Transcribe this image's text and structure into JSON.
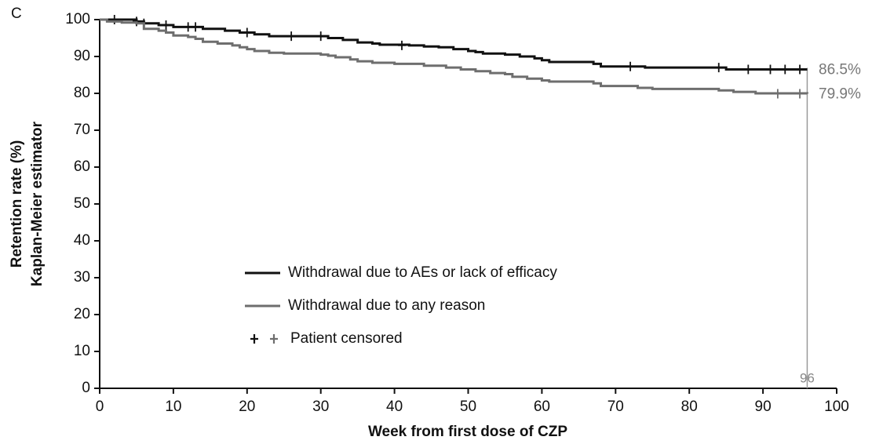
{
  "chart_data": {
    "type": "line",
    "step": true,
    "panel_label": "C",
    "ylabel": [
      "Retention rate (%)",
      "Kaplan-Meier estimator"
    ],
    "xlabel": "Week from first dose of CZP",
    "xlim": [
      0,
      100
    ],
    "xticks": [
      0,
      10,
      20,
      30,
      40,
      50,
      60,
      70,
      80,
      90,
      100
    ],
    "ylim": [
      0,
      100
    ],
    "yticks": [
      0,
      10,
      20,
      30,
      40,
      50,
      60,
      70,
      80,
      90,
      100
    ],
    "grid": false,
    "vline": 96,
    "censored_label": "Patient censored",
    "series": [
      {
        "name": "Withdrawal due to AEs or lack of efficacy",
        "color": "#111111",
        "x": [
          0,
          5,
          6,
          8,
          10,
          14,
          17,
          19,
          21,
          23,
          31,
          33,
          35,
          37,
          38,
          42,
          44,
          46,
          48,
          50,
          51,
          52,
          55,
          57,
          59,
          60,
          61,
          67,
          68,
          74,
          85,
          96
        ],
        "values": [
          100,
          99.5,
          99,
          98.5,
          98,
          97.5,
          97,
          96.5,
          96,
          95.5,
          95,
          94.5,
          93.8,
          93.5,
          93.2,
          93,
          92.7,
          92.5,
          92,
          91.5,
          91.2,
          90.8,
          90.5,
          90,
          89.5,
          89,
          88.5,
          88,
          87.3,
          87,
          86.5,
          86.5
        ],
        "censored": {
          "x": [
            2,
            5,
            6,
            9,
            12,
            13,
            20,
            26,
            30,
            41,
            72,
            84,
            88,
            91,
            93,
            95
          ],
          "values": [
            100,
            99.5,
            99,
            98.5,
            98,
            98,
            96.5,
            95.5,
            95.5,
            93,
            87.3,
            87,
            86.5,
            86.5,
            86.5,
            86.5
          ]
        },
        "end_value": 86.5,
        "end_value_label": "86.5%"
      },
      {
        "name": "Withdrawal due to any reason",
        "color": "#6e6e6e",
        "x": [
          0,
          1,
          3,
          5,
          6,
          8,
          9,
          10,
          12,
          13,
          14,
          16,
          18,
          19,
          20,
          21,
          23,
          25,
          30,
          31,
          32,
          34,
          35,
          37,
          40,
          44,
          47,
          49,
          51,
          53,
          55,
          56,
          58,
          60,
          61,
          67,
          68,
          73,
          75,
          84,
          86,
          89,
          96
        ],
        "values": [
          100,
          99.5,
          99.2,
          99,
          97.5,
          97,
          96.5,
          95.7,
          95.3,
          94.8,
          94,
          93.5,
          93,
          92.5,
          92,
          91.5,
          91,
          90.8,
          90.5,
          90.2,
          89.8,
          89.2,
          88.7,
          88.3,
          88,
          87.5,
          87,
          86.5,
          86,
          85.5,
          85.2,
          84.5,
          84,
          83.5,
          83.2,
          82.7,
          82,
          81.5,
          81.2,
          80.8,
          80.4,
          80,
          79.9
        ],
        "censored": {
          "x": [
            92,
            95
          ],
          "values": [
            79.9,
            79.9
          ]
        },
        "end_value": 79.9,
        "end_value_label": "79.9%"
      }
    ]
  }
}
